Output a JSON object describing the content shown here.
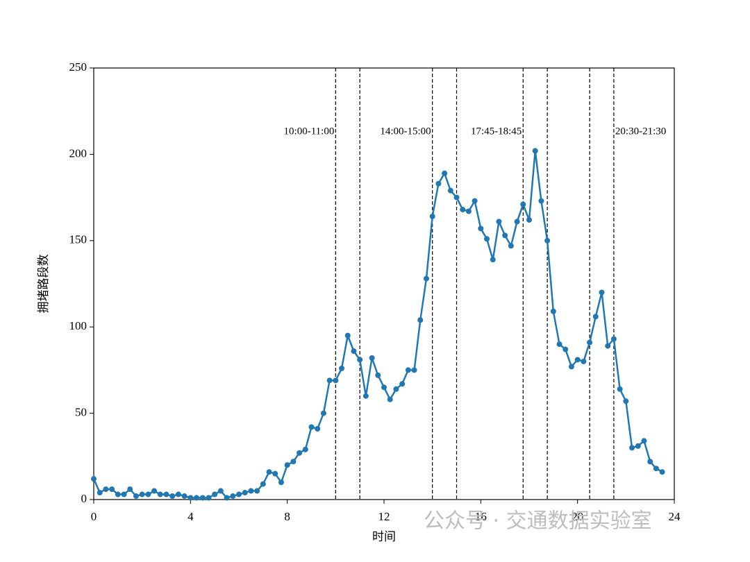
{
  "chart_data": {
    "type": "line",
    "xlabel": "时间",
    "ylabel": "拥堵路段数",
    "x": [
      0,
      0.25,
      0.5,
      0.75,
      1,
      1.25,
      1.5,
      1.75,
      2,
      2.25,
      2.5,
      2.75,
      3,
      3.25,
      3.5,
      3.75,
      4,
      4.25,
      4.5,
      4.75,
      5,
      5.25,
      5.5,
      5.75,
      6,
      6.25,
      6.5,
      6.75,
      7,
      7.25,
      7.5,
      7.75,
      8,
      8.25,
      8.5,
      8.75,
      9,
      9.25,
      9.5,
      9.75,
      10,
      10.25,
      10.5,
      10.75,
      11,
      11.25,
      11.5,
      11.75,
      12,
      12.25,
      12.5,
      12.75,
      13,
      13.25,
      13.5,
      13.75,
      14,
      14.25,
      14.5,
      14.75,
      15,
      15.25,
      15.5,
      15.75,
      16,
      16.25,
      16.5,
      16.75,
      17,
      17.25,
      17.5,
      17.75,
      18,
      18.25,
      18.5,
      18.75,
      19,
      19.25,
      19.5,
      19.75,
      20,
      20.25,
      20.5,
      20.75,
      21,
      21.25,
      21.5,
      21.75,
      22,
      22.25,
      22.5,
      22.75,
      23,
      23.25,
      23.5
    ],
    "values": [
      12,
      4,
      6,
      6,
      3,
      3,
      6,
      2,
      3,
      3,
      5,
      3,
      3,
      2,
      3,
      2,
      1,
      1,
      1,
      1,
      3,
      5,
      1,
      2,
      3,
      4,
      5,
      5,
      9,
      16,
      15,
      10,
      20,
      22,
      27,
      29,
      42,
      41,
      50,
      69,
      69,
      76,
      95,
      86,
      81,
      60,
      82,
      72,
      65,
      58,
      64,
      67,
      75,
      75,
      104,
      128,
      164,
      183,
      189,
      179,
      175,
      168,
      167,
      173,
      157,
      151,
      139,
      161,
      153,
      147,
      161,
      171,
      162,
      202,
      173,
      150,
      109,
      90,
      87,
      77,
      81,
      80,
      91,
      106,
      120,
      89,
      93,
      64,
      57,
      30,
      31,
      34,
      22,
      18,
      16
    ],
    "color": "#1f77b4",
    "xlim": [
      0,
      24
    ],
    "xticks": [
      0,
      4,
      8,
      12,
      16,
      20,
      24
    ],
    "ylim": [
      0,
      250
    ],
    "yticks": [
      0,
      50,
      100,
      150,
      200,
      250
    ],
    "periods": [
      {
        "label": "10:00-11:00",
        "start": 10,
        "end": 11
      },
      {
        "label": "14:00-15:00",
        "start": 14,
        "end": 15
      },
      {
        "label": "17:45-18:45",
        "start": 17.75,
        "end": 18.75
      },
      {
        "label": "20:30-21:30",
        "start": 20.5,
        "end": 21.5
      }
    ],
    "watermark": "公众号 · 交通数据实验室"
  }
}
